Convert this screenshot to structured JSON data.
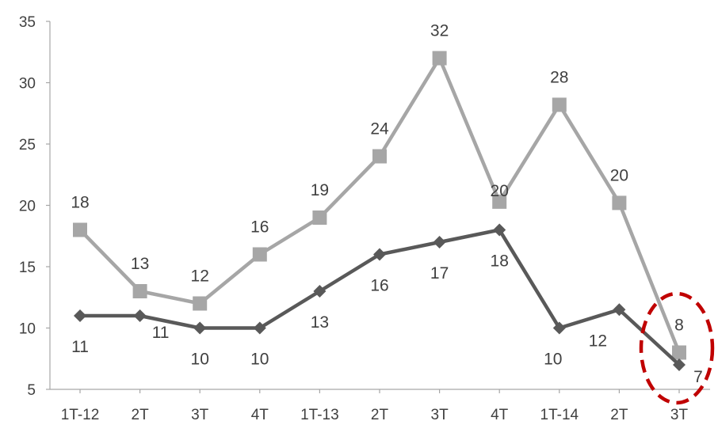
{
  "chart_data": {
    "type": "line",
    "categories": [
      "1T-12",
      "2T",
      "3T",
      "4T",
      "1T-13",
      "2T",
      "3T",
      "4T",
      "1T-14",
      "2T",
      "3T"
    ],
    "ylim": [
      5,
      35
    ],
    "yticks": [
      5,
      10,
      15,
      20,
      25,
      30,
      35
    ],
    "grid": false,
    "legend": "none",
    "series": [
      {
        "color": "#a6a6a6",
        "marker": "square",
        "values": [
          18,
          13,
          12,
          16,
          19,
          24,
          32,
          20.3,
          28.2,
          20.2,
          8
        ],
        "labels": [
          "18",
          "13",
          "12",
          "16",
          "19",
          "24",
          "32",
          "20",
          "28",
          "20",
          "8"
        ]
      },
      {
        "color": "#595959",
        "marker": "diamond",
        "values": [
          11,
          11,
          10,
          10,
          13,
          16,
          17,
          18,
          10,
          11.5,
          7
        ],
        "labels": [
          "11",
          "11",
          "10",
          "10",
          "13",
          "16",
          "17",
          "18",
          "10",
          "12",
          "7"
        ]
      }
    ],
    "annotation": {
      "type": "dashed-circle",
      "color": "#c00000",
      "category_index": 10
    }
  }
}
